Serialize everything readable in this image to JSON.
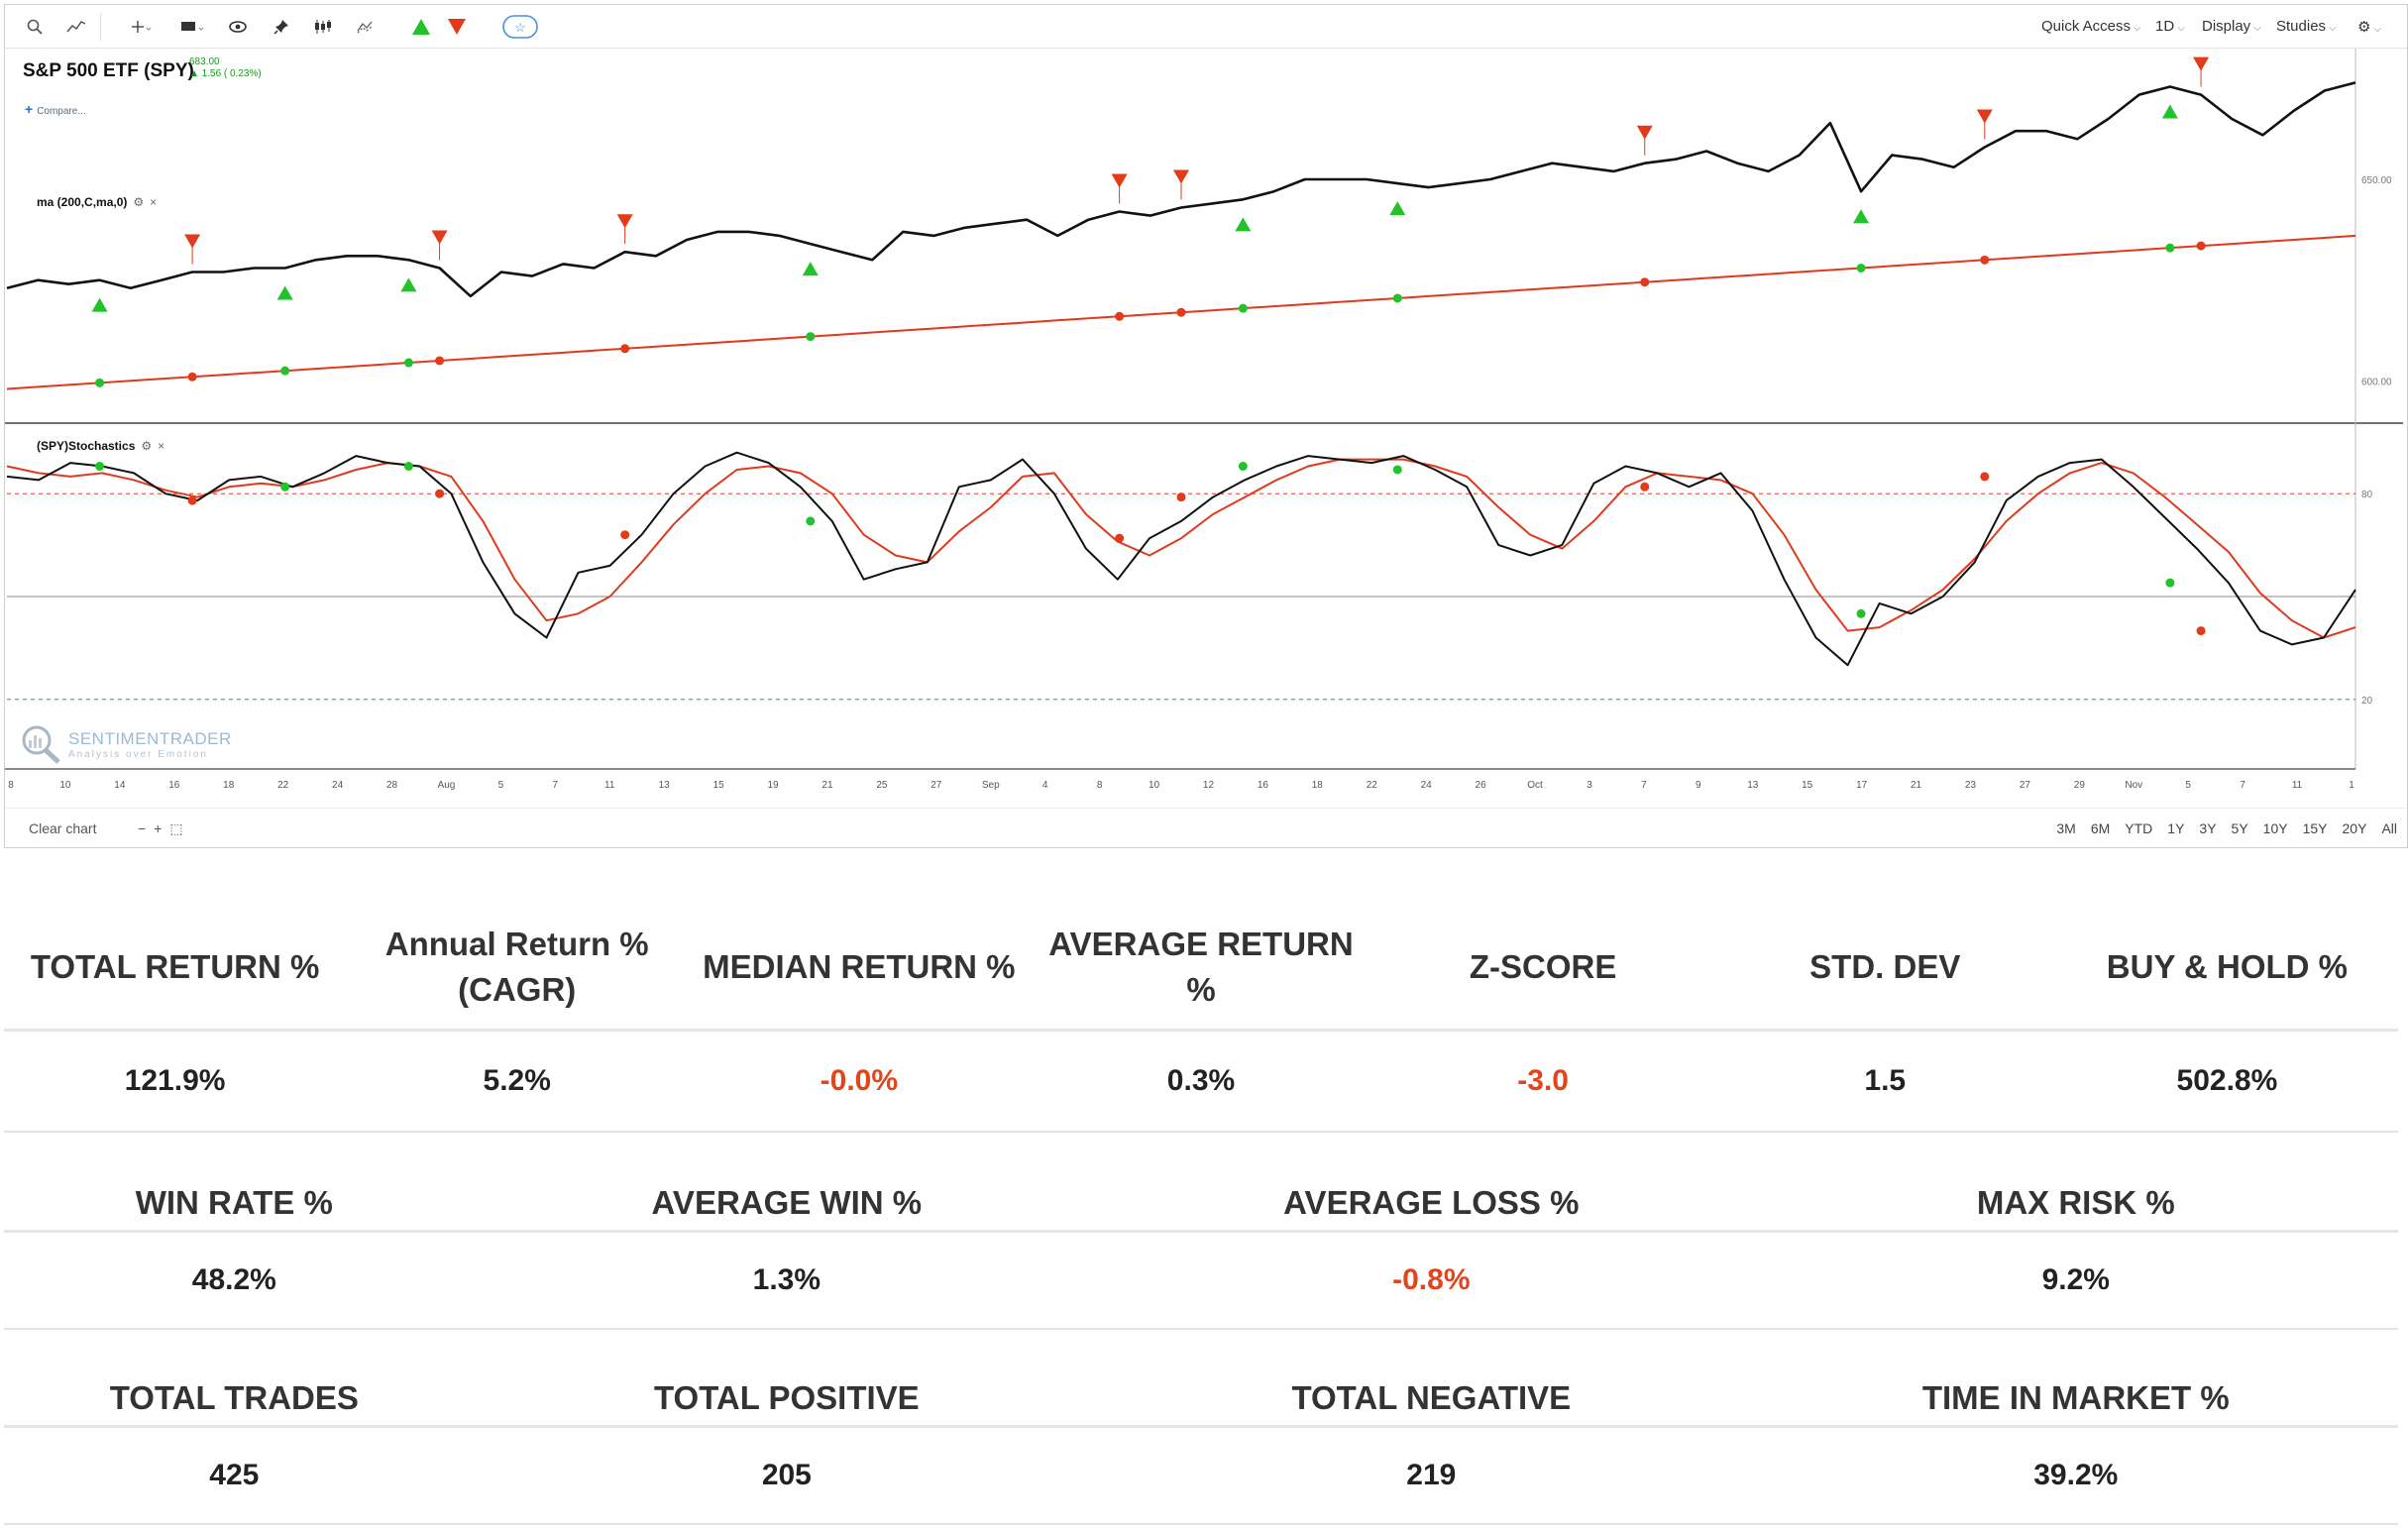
{
  "toolbar": {
    "menus": [
      "Quick Access",
      "1D",
      "Display",
      "Studies"
    ],
    "icons": [
      "search-icon",
      "line-chart-icon",
      "crosshair-icon",
      "chart-type-icon",
      "eye-icon",
      "pin-icon",
      "candles-icon",
      "compare-icon",
      "green-up-arrow-icon",
      "red-down-arrow-icon",
      "star-icon",
      "gear-icon"
    ]
  },
  "legend": {
    "title": "S&P 500 ETF (SPY)",
    "price": "683.00",
    "change": "▲ 1.56 ( 0.23%)",
    "compare": "Compare..."
  },
  "studies": {
    "ma_label": "ma (200,C,ma,0)",
    "stoch_label": "(SPY)Stochastics",
    "settings_icon": "⚙",
    "close_icon": "×"
  },
  "watermark": {
    "name": "SENTIMENTRADER",
    "tagline": "Analysis over Emotion"
  },
  "footer": {
    "clear_chart": "Clear chart",
    "zoom": [
      "−",
      "+",
      "⬚"
    ],
    "ranges": [
      "3M",
      "6M",
      "YTD",
      "1Y",
      "3Y",
      "5Y",
      "10Y",
      "15Y",
      "20Y",
      "All"
    ]
  },
  "chart_data": {
    "type": "line",
    "x_ticks": [
      "8",
      "10",
      "14",
      "16",
      "18",
      "22",
      "24",
      "28",
      "Aug",
      "5",
      "7",
      "11",
      "13",
      "15",
      "19",
      "21",
      "25",
      "27",
      "Sep",
      "4",
      "8",
      "10",
      "12",
      "16",
      "18",
      "22",
      "24",
      "26",
      "Oct",
      "3",
      "7",
      "9",
      "13",
      "15",
      "17",
      "21",
      "23",
      "27",
      "29",
      "Nov",
      "5",
      "7",
      "11",
      "1"
    ],
    "price_axis": [
      "650.00",
      "600.00"
    ],
    "stoch_axis": [
      "80",
      "20"
    ],
    "series": [
      {
        "name": "SPY",
        "color": "#111111",
        "values": [
          623,
          625,
          624,
          625,
          623,
          625,
          627,
          627,
          628,
          628,
          630,
          631,
          631,
          630,
          628,
          621,
          627,
          626,
          629,
          628,
          632,
          631,
          635,
          637,
          637,
          636,
          634,
          632,
          630,
          637,
          636,
          638,
          639,
          640,
          636,
          640,
          642,
          641,
          643,
          644,
          645,
          647,
          650,
          650,
          650,
          649,
          648,
          649,
          650,
          652,
          654,
          653,
          652,
          654,
          655,
          657,
          654,
          652,
          656,
          664,
          647,
          656,
          655,
          653,
          658,
          662,
          662,
          660,
          665,
          671,
          673,
          671,
          665,
          661,
          667,
          672,
          674
        ]
      },
      {
        "name": "ma (200,C,ma,0)",
        "color": "#e03a1e",
        "values": [
          598,
          598.5,
          599,
          599.5,
          600,
          600.5,
          601,
          601.5,
          602,
          602.5,
          603,
          603.5,
          604,
          604.5,
          605,
          605.5,
          606,
          606.5,
          607,
          607.5,
          608,
          608.5,
          609,
          609.5,
          610,
          610.5,
          611,
          611.5,
          612,
          612.5,
          613,
          613.5,
          614,
          614.5,
          615,
          615.5,
          616,
          616.5,
          617,
          617.5,
          618,
          618.5,
          619,
          619.5,
          620,
          620.5,
          621,
          621.5,
          622,
          622.5,
          623,
          623.5,
          624,
          624.5,
          625,
          625.5,
          626,
          626.5,
          627,
          627.5,
          628,
          628.5,
          629,
          629.5,
          630,
          630.5,
          631,
          631.5,
          632,
          632.5,
          633,
          633.5,
          634,
          634.5,
          635,
          635.5,
          636
        ]
      },
      {
        "name": "%K",
        "color": "#111111",
        "values": [
          85,
          84,
          89,
          88,
          86,
          80,
          78,
          84,
          85,
          82,
          86,
          91,
          89,
          88,
          80,
          60,
          45,
          38,
          57,
          59,
          68,
          80,
          88,
          92,
          89,
          82,
          72,
          55,
          58,
          60,
          82,
          84,
          90,
          80,
          64,
          55,
          67,
          72,
          79,
          84,
          88,
          91,
          90,
          89,
          91,
          87,
          82,
          65,
          62,
          65,
          83,
          88,
          86,
          82,
          86,
          75,
          55,
          38,
          30,
          48,
          45,
          50,
          60,
          78,
          85,
          89,
          90,
          82,
          73,
          64,
          54,
          40,
          36,
          38,
          52
        ]
      },
      {
        "name": "%D",
        "color": "#e03a1e",
        "values": [
          88,
          86,
          85,
          86,
          84,
          81,
          79,
          82,
          83,
          82,
          84,
          87,
          89,
          88,
          85,
          72,
          55,
          43,
          45,
          50,
          60,
          71,
          80,
          87,
          88,
          86,
          80,
          68,
          62,
          60,
          69,
          76,
          85,
          86,
          74,
          66,
          62,
          67,
          74,
          79,
          84,
          88,
          90,
          90,
          90,
          88,
          85,
          76,
          68,
          64,
          72,
          82,
          86,
          85,
          84,
          80,
          68,
          52,
          40,
          41,
          46,
          52,
          61,
          72,
          80,
          86,
          89,
          86,
          79,
          71,
          63,
          51,
          43,
          38,
          41
        ]
      }
    ]
  },
  "stats": {
    "row1": {
      "headers": [
        "TOTAL RETURN %",
        "Annual Return % (CAGR)",
        "MEDIAN RETURN %",
        "AVERAGE RETURN %",
        "Z-SCORE",
        "STD. DEV",
        "BUY & HOLD %"
      ],
      "values": [
        "121.9%",
        "5.2%",
        "-0.0%",
        "0.3%",
        "-3.0",
        "1.5",
        "502.8%"
      ]
    },
    "row2": {
      "headers": [
        "WIN RATE %",
        "AVERAGE WIN %",
        "AVERAGE LOSS %",
        "MAX RISK %"
      ],
      "values": [
        "48.2%",
        "1.3%",
        "-0.8%",
        "9.2%"
      ]
    },
    "row3": {
      "headers": [
        "TOTAL TRADES",
        "TOTAL POSITIVE",
        "TOTAL NEGATIVE",
        "TIME IN MARKET %"
      ],
      "values": [
        "425",
        "205",
        "219",
        "39.2%"
      ]
    },
    "negative_color": "#e2451b"
  }
}
